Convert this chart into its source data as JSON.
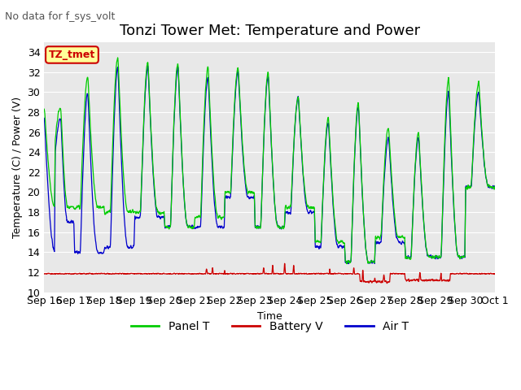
{
  "title": "Tonzi Tower Met: Temperature and Power",
  "subtitle": "No data for f_sys_volt",
  "xlabel": "Time",
  "ylabel": "Temperature (C) / Power (V)",
  "ylim": [
    10,
    35
  ],
  "yticks": [
    10,
    12,
    14,
    16,
    18,
    20,
    22,
    24,
    26,
    28,
    30,
    32,
    34
  ],
  "x_tick_labels": [
    "Sep 16",
    "Sep 17",
    "Sep 18",
    "Sep 19",
    "Sep 20",
    "Sep 21",
    "Sep 22",
    "Sep 23",
    "Sep 24",
    "Sep 25",
    "Sep 26",
    "Sep 27",
    "Sep 28",
    "Sep 29",
    "Sep 30",
    "Oct 1"
  ],
  "panel_color": "#00cc00",
  "battery_color": "#cc0000",
  "air_color": "#0000cc",
  "legend_labels": [
    "Panel T",
    "Battery V",
    "Air T"
  ],
  "annotation_text": "TZ_tmet",
  "annotation_color": "#cc0000",
  "annotation_bg": "#ffff99",
  "annotation_border": "#cc0000",
  "background_color": "#e8e8e8",
  "grid_color": "#ffffff",
  "title_fontsize": 13,
  "label_fontsize": 9,
  "tick_fontsize": 9,
  "subtitle_fontsize": 9,
  "legend_fontsize": 10
}
